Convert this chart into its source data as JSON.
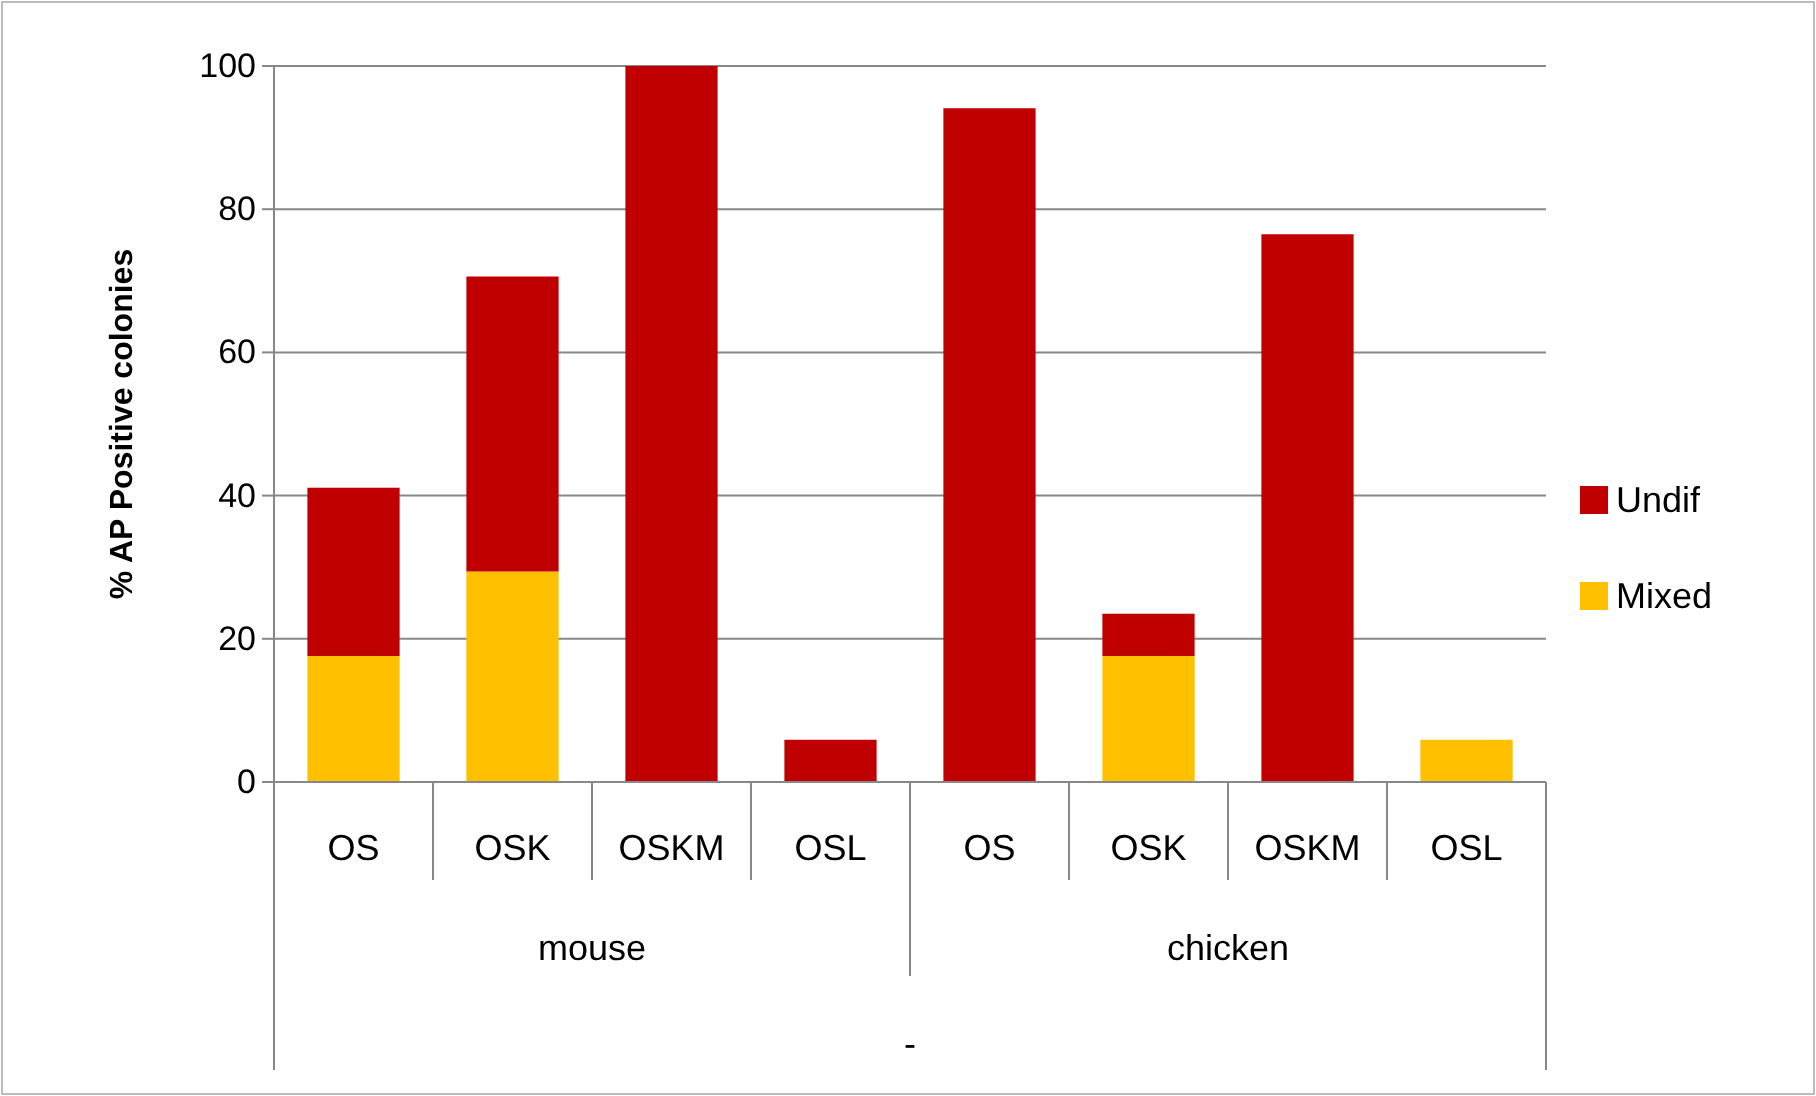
{
  "chart_data": {
    "type": "bar",
    "stacked": true,
    "ylabel": "% AP Positive colonies",
    "xlabel": "-",
    "categories": [
      "OS",
      "OSK",
      "OSKM",
      "OSL",
      "OS",
      "OSK",
      "OSKM",
      "OSL"
    ],
    "annotations": [
      "mouse",
      "chicken"
    ],
    "series": [
      {
        "name": "Mixed",
        "color": "#ffc000",
        "values": [
          17.6,
          29.4,
          0,
          0,
          0,
          17.6,
          0,
          5.9
        ]
      },
      {
        "name": "Undif",
        "color": "#c00000",
        "values": [
          23.5,
          41.2,
          100,
          5.9,
          94.1,
          5.9,
          76.5,
          0
        ]
      }
    ],
    "ylim": [
      0,
      100
    ],
    "yticks": [
      0,
      20,
      40,
      60,
      80,
      100
    ],
    "grid": "y",
    "legend": "right"
  }
}
